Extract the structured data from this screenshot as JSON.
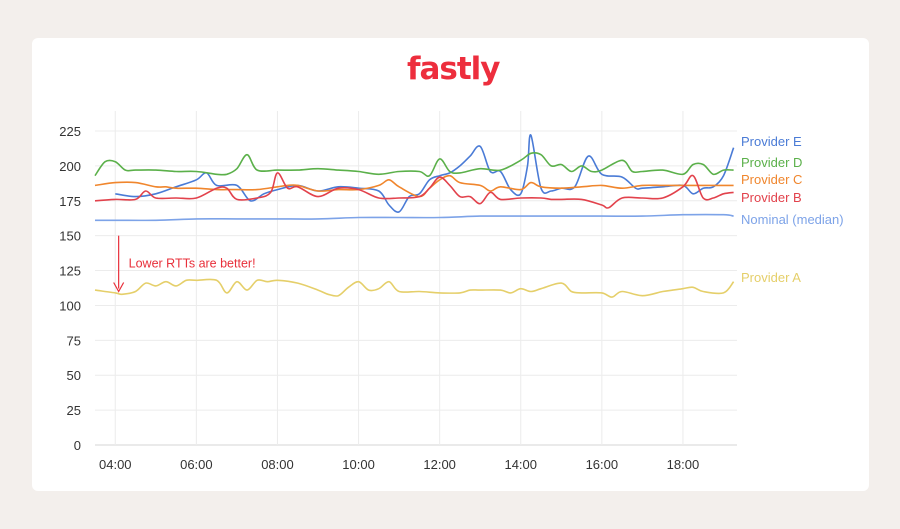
{
  "brand": {
    "logo_text": "fastly",
    "logo_color": "#ed2e3d"
  },
  "chart_data": {
    "type": "line",
    "title": "",
    "xlabel": "",
    "ylabel": "",
    "ylim": [
      0,
      225
    ],
    "yticks": [
      0,
      25,
      50,
      75,
      100,
      125,
      150,
      175,
      200,
      225
    ],
    "xticks": [
      "04:00",
      "06:00",
      "08:00",
      "10:00",
      "12:00",
      "14:00",
      "16:00",
      "18:00"
    ],
    "x_start": "03:30",
    "x_end": "19:20",
    "grid": true,
    "legend_placement": "right, labels at line ends",
    "annotation": {
      "text": "Lower RTTs are better!",
      "time": "04:05",
      "value_from": 150,
      "value_to": 110,
      "color": "#e8303b"
    },
    "series": [
      {
        "name": "Provider E",
        "color": "#4a7bd6",
        "x": [
          "04:00",
          "04:30",
          "05:00",
          "05:30",
          "06:00",
          "06:15",
          "06:30",
          "07:00",
          "07:20",
          "07:40",
          "08:00",
          "08:30",
          "09:00",
          "09:30",
          "10:00",
          "10:30",
          "10:45",
          "11:00",
          "11:15",
          "11:30",
          "11:45",
          "12:00",
          "12:15",
          "12:30",
          "12:45",
          "13:00",
          "13:15",
          "13:30",
          "13:45",
          "14:00",
          "14:10",
          "14:15",
          "14:30",
          "14:45",
          "15:00",
          "15:20",
          "15:40",
          "16:00",
          "16:30",
          "16:50",
          "17:00",
          "17:30",
          "18:00",
          "18:15",
          "18:30",
          "18:45",
          "19:00",
          "19:15"
        ],
        "values": [
          180,
          178,
          180,
          185,
          190,
          195,
          186,
          186,
          175,
          180,
          183,
          186,
          182,
          185,
          184,
          182,
          172,
          167,
          178,
          180,
          190,
          193,
          195,
          200,
          207,
          214,
          196,
          196,
          183,
          180,
          200,
          222,
          184,
          182,
          184,
          185,
          207,
          194,
          192,
          184,
          184,
          185,
          186,
          180,
          184,
          185,
          193,
          213
        ]
      },
      {
        "name": "Provider D",
        "color": "#5bb04a",
        "x": [
          "03:30",
          "03:45",
          "04:00",
          "04:15",
          "04:30",
          "05:00",
          "05:30",
          "06:00",
          "06:30",
          "06:45",
          "07:00",
          "07:15",
          "07:30",
          "08:00",
          "08:30",
          "09:00",
          "09:30",
          "10:00",
          "10:30",
          "11:00",
          "11:30",
          "11:45",
          "12:00",
          "12:15",
          "12:30",
          "13:00",
          "13:30",
          "14:00",
          "14:15",
          "14:30",
          "14:45",
          "15:00",
          "15:15",
          "15:30",
          "15:45",
          "16:00",
          "16:30",
          "16:45",
          "17:00",
          "17:30",
          "18:00",
          "18:15",
          "18:30",
          "18:45",
          "19:00",
          "19:15"
        ],
        "values": [
          193,
          203,
          203,
          197,
          197,
          197,
          196,
          196,
          194,
          194,
          198,
          208,
          197,
          197,
          197,
          198,
          197,
          196,
          194,
          196,
          196,
          193,
          205,
          196,
          195,
          198,
          197,
          204,
          209,
          208,
          200,
          201,
          196,
          200,
          196,
          197,
          204,
          196,
          196,
          197,
          194,
          201,
          201,
          194,
          197,
          197
        ]
      },
      {
        "name": "Provider C",
        "color": "#f0862d",
        "x": [
          "03:30",
          "04:00",
          "04:30",
          "05:00",
          "05:15",
          "05:30",
          "06:00",
          "06:30",
          "06:45",
          "07:00",
          "07:30",
          "08:00",
          "08:15",
          "08:30",
          "09:00",
          "09:30",
          "10:00",
          "10:30",
          "10:45",
          "11:00",
          "11:30",
          "11:45",
          "12:00",
          "12:15",
          "12:30",
          "13:00",
          "13:15",
          "13:30",
          "14:00",
          "14:15",
          "14:30",
          "15:00",
          "15:30",
          "16:00",
          "16:30",
          "17:00",
          "17:30",
          "18:00",
          "18:30",
          "19:00",
          "19:15"
        ],
        "values": [
          186,
          188,
          188,
          185,
          185,
          184,
          184,
          183,
          183,
          183,
          183,
          185,
          186,
          186,
          182,
          183,
          183,
          186,
          190,
          185,
          178,
          184,
          190,
          193,
          188,
          186,
          182,
          185,
          183,
          188,
          185,
          184,
          185,
          186,
          184,
          186,
          186,
          186,
          186,
          186,
          186
        ]
      },
      {
        "name": "Provider B",
        "color": "#e2424c",
        "x": [
          "03:30",
          "04:00",
          "04:30",
          "04:45",
          "05:00",
          "05:30",
          "06:00",
          "06:30",
          "06:45",
          "07:00",
          "07:30",
          "07:50",
          "08:00",
          "08:15",
          "08:30",
          "09:00",
          "09:30",
          "10:00",
          "10:30",
          "11:00",
          "11:30",
          "11:45",
          "12:00",
          "12:15",
          "12:30",
          "12:45",
          "13:00",
          "13:15",
          "13:30",
          "14:00",
          "14:30",
          "14:45",
          "15:00",
          "15:30",
          "16:00",
          "16:10",
          "16:30",
          "17:00",
          "17:30",
          "18:00",
          "18:15",
          "18:30",
          "18:45",
          "19:00",
          "19:15"
        ],
        "values": [
          175,
          176,
          176,
          182,
          177,
          177,
          177,
          184,
          184,
          176,
          177,
          181,
          195,
          184,
          185,
          178,
          184,
          183,
          177,
          177,
          178,
          184,
          192,
          186,
          178,
          178,
          173,
          181,
          176,
          177,
          177,
          176,
          176,
          176,
          172,
          170,
          177,
          177,
          177,
          185,
          193,
          177,
          177,
          180,
          181
        ]
      },
      {
        "name": "Nominal (median)",
        "color": "#7da3e8",
        "x": [
          "03:30",
          "04:00",
          "05:00",
          "06:00",
          "07:00",
          "08:00",
          "09:00",
          "10:00",
          "11:00",
          "12:00",
          "13:00",
          "14:00",
          "15:00",
          "16:00",
          "17:00",
          "18:00",
          "19:00",
          "19:15"
        ],
        "values": [
          161,
          161,
          161,
          162,
          162,
          162,
          162,
          163,
          163,
          163,
          164,
          164,
          164,
          164,
          164,
          165,
          165,
          164
        ]
      },
      {
        "name": "Provider A",
        "color": "#e5cf6a",
        "x": [
          "03:30",
          "04:00",
          "04:10",
          "04:30",
          "04:45",
          "05:00",
          "05:15",
          "05:30",
          "05:45",
          "06:00",
          "06:30",
          "06:45",
          "07:00",
          "07:15",
          "07:30",
          "07:45",
          "08:00",
          "08:30",
          "09:00",
          "09:15",
          "09:30",
          "09:45",
          "10:00",
          "10:15",
          "10:30",
          "10:45",
          "11:00",
          "11:30",
          "12:00",
          "12:30",
          "12:45",
          "13:00",
          "13:30",
          "13:45",
          "14:00",
          "14:15",
          "14:30",
          "15:00",
          "15:15",
          "15:30",
          "16:00",
          "16:15",
          "16:30",
          "17:00",
          "17:30",
          "17:45",
          "18:00",
          "18:15",
          "18:30",
          "19:00",
          "19:15"
        ],
        "values": [
          111,
          109,
          108,
          110,
          116,
          114,
          117,
          114,
          118,
          118,
          118,
          109,
          117,
          111,
          118,
          117,
          118,
          116,
          111,
          108,
          107,
          113,
          117,
          111,
          112,
          117,
          110,
          110,
          109,
          109,
          111,
          111,
          111,
          109,
          112,
          110,
          112,
          116,
          110,
          109,
          109,
          106,
          110,
          107,
          110,
          111,
          112,
          113,
          110,
          109,
          117
        ]
      }
    ]
  }
}
